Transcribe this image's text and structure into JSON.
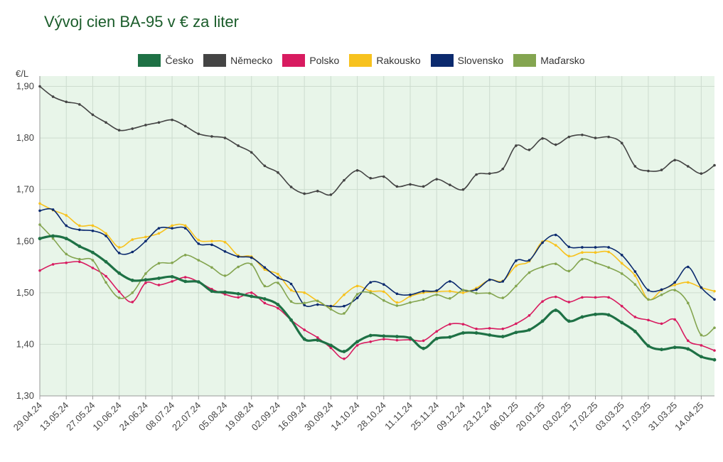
{
  "chart_data": {
    "type": "line",
    "title": "Vývoj cien BA-95 v € za liter",
    "ylabel": "€/L",
    "xlabel": "",
    "ylim": [
      1.3,
      1.92
    ],
    "yticks": [
      "1,30",
      "1,40",
      "1,50",
      "1,60",
      "1,70",
      "1,80",
      "1,90"
    ],
    "ytick_values": [
      1.3,
      1.4,
      1.5,
      1.6,
      1.7,
      1.8,
      1.9
    ],
    "grid": true,
    "legend_position": "top-center",
    "xtick_labels": [
      "29.04.24",
      "13.05.24",
      "27.05.24",
      "10.06.24",
      "24.06.24",
      "08.07.24",
      "22.07.24",
      "05.08.24",
      "19.08.24",
      "02.09.24",
      "16.09.24",
      "30.09.24",
      "14.10.24",
      "28.10.24",
      "11.11.24",
      "25.11.24",
      "09.12.24",
      "23.12.24",
      "06.01.25",
      "20.01.25",
      "03.02.25",
      "17.02.25",
      "03.03.25",
      "17.03.25",
      "31.03.25",
      "14.04.25"
    ],
    "series": [
      {
        "name": "Česko",
        "color": "#1e7145",
        "values": [
          1.605,
          1.61,
          1.605,
          1.59,
          1.578,
          1.56,
          1.538,
          1.524,
          1.525,
          1.528,
          1.531,
          1.522,
          1.521,
          1.503,
          1.501,
          1.498,
          1.493,
          1.488,
          1.477,
          1.447,
          1.41,
          1.408,
          1.398,
          1.386,
          1.405,
          1.417,
          1.416,
          1.415,
          1.412,
          1.392,
          1.411,
          1.414,
          1.422,
          1.422,
          1.418,
          1.415,
          1.423,
          1.428,
          1.445,
          1.466,
          1.445,
          1.453,
          1.458,
          1.457,
          1.442,
          1.425,
          1.397,
          1.39,
          1.394,
          1.391,
          1.376,
          1.37
        ]
      },
      {
        "name": "Německo",
        "color": "#444444",
        "values": [
          1.9,
          1.88,
          1.87,
          1.865,
          1.845,
          1.83,
          1.815,
          1.818,
          1.825,
          1.83,
          1.835,
          1.823,
          1.808,
          1.803,
          1.8,
          1.785,
          1.772,
          1.746,
          1.733,
          1.705,
          1.692,
          1.697,
          1.69,
          1.718,
          1.737,
          1.722,
          1.725,
          1.706,
          1.71,
          1.706,
          1.72,
          1.709,
          1.7,
          1.729,
          1.731,
          1.74,
          1.785,
          1.777,
          1.799,
          1.787,
          1.802,
          1.806,
          1.8,
          1.802,
          1.79,
          1.745,
          1.736,
          1.738,
          1.757,
          1.745,
          1.731,
          1.747
        ]
      },
      {
        "name": "Polsko",
        "color": "#d81b60",
        "values": [
          1.543,
          1.555,
          1.558,
          1.56,
          1.548,
          1.532,
          1.502,
          1.482,
          1.519,
          1.515,
          1.522,
          1.53,
          1.521,
          1.507,
          1.497,
          1.491,
          1.5,
          1.48,
          1.47,
          1.447,
          1.428,
          1.413,
          1.393,
          1.372,
          1.398,
          1.405,
          1.41,
          1.408,
          1.409,
          1.407,
          1.425,
          1.439,
          1.439,
          1.43,
          1.431,
          1.43,
          1.44,
          1.456,
          1.483,
          1.492,
          1.482,
          1.491,
          1.491,
          1.491,
          1.474,
          1.453,
          1.447,
          1.44,
          1.448,
          1.407,
          1.398,
          1.388
        ]
      },
      {
        "name": "Rakousko",
        "color": "#f7c21e",
        "values": [
          1.673,
          1.66,
          1.65,
          1.63,
          1.63,
          1.615,
          1.588,
          1.603,
          1.608,
          1.615,
          1.63,
          1.63,
          1.602,
          1.6,
          1.598,
          1.572,
          1.57,
          1.545,
          1.536,
          1.505,
          1.5,
          1.484,
          1.473,
          1.496,
          1.513,
          1.503,
          1.502,
          1.481,
          1.493,
          1.5,
          1.502,
          1.503,
          1.5,
          1.509,
          1.525,
          1.523,
          1.552,
          1.561,
          1.599,
          1.592,
          1.571,
          1.578,
          1.578,
          1.579,
          1.557,
          1.533,
          1.487,
          1.505,
          1.515,
          1.52,
          1.51,
          1.503
        ]
      },
      {
        "name": "Slovensko",
        "color": "#0b2a6e",
        "values": [
          1.659,
          1.661,
          1.63,
          1.622,
          1.62,
          1.61,
          1.577,
          1.579,
          1.6,
          1.625,
          1.625,
          1.625,
          1.595,
          1.593,
          1.58,
          1.57,
          1.568,
          1.549,
          1.529,
          1.517,
          1.476,
          1.477,
          1.474,
          1.474,
          1.49,
          1.52,
          1.516,
          1.498,
          1.496,
          1.503,
          1.504,
          1.522,
          1.505,
          1.506,
          1.525,
          1.522,
          1.562,
          1.563,
          1.597,
          1.612,
          1.589,
          1.588,
          1.588,
          1.588,
          1.573,
          1.541,
          1.505,
          1.506,
          1.52,
          1.55,
          1.51,
          1.487
        ]
      },
      {
        "name": "Maďarsko",
        "color": "#84a550",
        "values": [
          1.632,
          1.605,
          1.575,
          1.565,
          1.563,
          1.52,
          1.49,
          1.5,
          1.537,
          1.557,
          1.558,
          1.573,
          1.563,
          1.549,
          1.533,
          1.55,
          1.555,
          1.513,
          1.519,
          1.483,
          1.48,
          1.484,
          1.468,
          1.46,
          1.497,
          1.5,
          1.485,
          1.475,
          1.481,
          1.487,
          1.496,
          1.489,
          1.505,
          1.499,
          1.499,
          1.49,
          1.513,
          1.539,
          1.55,
          1.556,
          1.542,
          1.565,
          1.558,
          1.549,
          1.537,
          1.516,
          1.487,
          1.496,
          1.505,
          1.48,
          1.418,
          1.432
        ]
      }
    ]
  }
}
